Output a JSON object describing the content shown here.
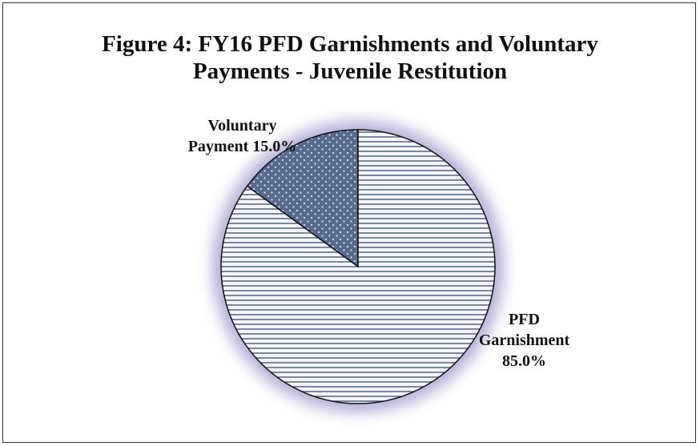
{
  "chart_data": {
    "type": "pie",
    "title": "Figure 4: FY16 PFD Garnishments and Voluntary Payments - Juvenile Restitution",
    "categories": [
      "Voluntary Payment",
      "PFD Garnishment"
    ],
    "values": [
      15,
      85
    ],
    "value_labels": [
      "15.0%",
      "85.0%"
    ],
    "colors": [
      "#566b8e",
      "#f4f6fb"
    ]
  }
}
